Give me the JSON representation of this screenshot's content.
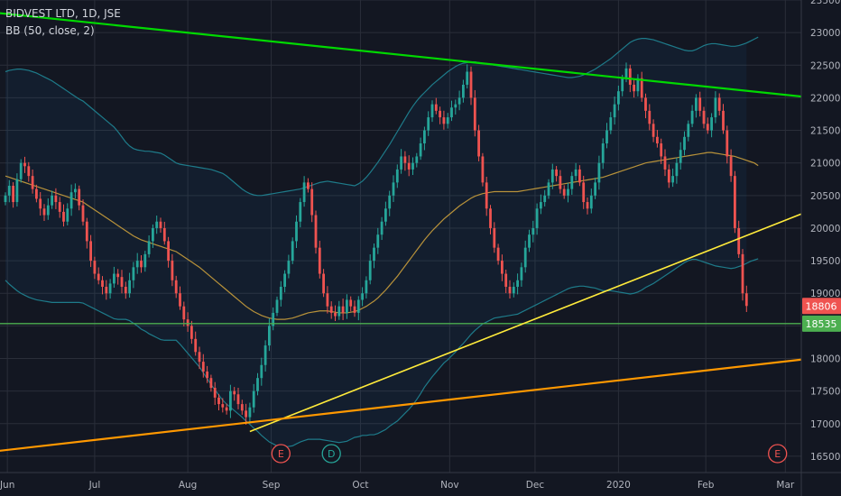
{
  "chart_data": {
    "type": "candlestick",
    "title": "BIDVEST LTD, 1D, JSE",
    "indicator": "BB (50, close, 2)",
    "ylim": [
      16250,
      23500
    ],
    "y_ticks": [
      16500,
      17000,
      17500,
      18000,
      18500,
      19000,
      19500,
      20000,
      20500,
      21000,
      21500,
      22000,
      22500,
      23000,
      23500
    ],
    "x_labels": [
      "Jun",
      "Jul",
      "Aug",
      "Sep",
      "Oct",
      "Nov",
      "Dec",
      "2020",
      "Feb",
      "Mar"
    ],
    "x_label_positions": [
      0.5,
      23,
      47,
      68.5,
      91.5,
      114.5,
      136.5,
      158,
      180.5,
      201
    ],
    "price_tags": [
      {
        "label": "18806",
        "value": 18806,
        "color": "#ef5350"
      },
      {
        "label": "18535",
        "value": 18535,
        "color": "#4caf50"
      }
    ],
    "horizontal_line": {
      "value": 18535,
      "color": "#4caf50"
    },
    "trendlines": [
      {
        "name": "green-resistance",
        "color": "#00d900",
        "points": [
          [
            -5,
            23320
          ],
          [
            218,
            21940
          ]
        ]
      },
      {
        "name": "yellow-support",
        "color": "#ffeb3b",
        "points": [
          [
            63,
            16880
          ],
          [
            218,
            20520
          ]
        ]
      },
      {
        "name": "orange-support",
        "color": "#ff9800",
        "points": [
          [
            -5,
            16560
          ],
          [
            218,
            18070
          ]
        ]
      }
    ],
    "events": [
      {
        "label": "E",
        "x": 71,
        "color": "#ef5350"
      },
      {
        "label": "D",
        "x": 84,
        "color": "#26a69a"
      },
      {
        "label": "E",
        "x": 199,
        "color": "#ef5350"
      }
    ],
    "close": [
      20500,
      20650,
      20400,
      20750,
      21000,
      20950,
      20800,
      20600,
      20450,
      20300,
      20200,
      20350,
      20500,
      20400,
      20250,
      20100,
      20300,
      20550,
      20600,
      20350,
      20100,
      19800,
      19500,
      19300,
      19200,
      19100,
      19000,
      19150,
      19300,
      19250,
      19100,
      19000,
      19200,
      19400,
      19500,
      19400,
      19600,
      19800,
      20000,
      20100,
      20000,
      19800,
      19500,
      19200,
      19000,
      18800,
      18600,
      18500,
      18300,
      18100,
      17950,
      17800,
      17700,
      17550,
      17400,
      17300,
      17250,
      17200,
      17500,
      17450,
      17300,
      17200,
      17100,
      17250,
      17500,
      17700,
      17900,
      18200,
      18500,
      18700,
      18900,
      19100,
      19300,
      19500,
      19800,
      20100,
      20400,
      20700,
      20600,
      20200,
      19700,
      19300,
      19000,
      18800,
      18700,
      18650,
      18800,
      18700,
      18900,
      18800,
      18700,
      18900,
      19000,
      19200,
      19500,
      19700,
      19900,
      20100,
      20300,
      20500,
      20700,
      20900,
      21100,
      21000,
      20900,
      21000,
      21100,
      21300,
      21500,
      21700,
      21900,
      21800,
      21700,
      21600,
      21700,
      21850,
      21900,
      22000,
      22200,
      22400,
      22000,
      21500,
      21100,
      20700,
      20300,
      20000,
      19700,
      19500,
      19300,
      19100,
      19000,
      19100,
      19200,
      19400,
      19700,
      19900,
      20000,
      20300,
      20400,
      20500,
      20700,
      20900,
      20800,
      20600,
      20500,
      20600,
      20800,
      20900,
      20700,
      20400,
      20300,
      20500,
      20700,
      21000,
      21300,
      21500,
      21700,
      21900,
      22100,
      22300,
      22450,
      22200,
      22100,
      22300,
      22000,
      21800,
      21600,
      21400,
      21300,
      21100,
      20900,
      20700,
      20800,
      21000,
      21200,
      21400,
      21600,
      21800,
      22000,
      21800,
      21600,
      21500,
      21700,
      22000,
      21800,
      21500,
      21100,
      20800,
      20000,
      19600,
      19000,
      18806
    ],
    "bb_mid": [
      20800,
      20780,
      20760,
      20740,
      20720,
      20700,
      20680,
      20660,
      20640,
      20620,
      20600,
      20580,
      20560,
      20540,
      20520,
      20500,
      20480,
      20460,
      20440,
      20420,
      20400,
      20360,
      20320,
      20280,
      20240,
      20200,
      20160,
      20120,
      20080,
      20040,
      20000,
      19960,
      19920,
      19880,
      19850,
      19820,
      19800,
      19780,
      19760,
      19740,
      19720,
      19700,
      19680,
      19660,
      19640,
      19600,
      19560,
      19520,
      19480,
      19440,
      19400,
      19350,
      19300,
      19250,
      19200,
      19150,
      19100,
      19050,
      19000,
      18950,
      18900,
      18850,
      18800,
      18760,
      18720,
      18690,
      18660,
      18640,
      18620,
      18610,
      18600,
      18600,
      18600,
      18610,
      18620,
      18640,
      18660,
      18680,
      18700,
      18710,
      18720,
      18730,
      18730,
      18730,
      18720,
      18710,
      18700,
      18700,
      18700,
      18710,
      18720,
      18740,
      18770,
      18800,
      18840,
      18880,
      18930,
      18990,
      19050,
      19120,
      19190,
      19260,
      19340,
      19420,
      19500,
      19580,
      19660,
      19740,
      19820,
      19890,
      19960,
      20020,
      20080,
      20140,
      20190,
      20240,
      20290,
      20340,
      20380,
      20420,
      20460,
      20490,
      20510,
      20530,
      20540,
      20550,
      20560,
      20560,
      20560,
      20560,
      20560,
      20560,
      20560,
      20570,
      20580,
      20590,
      20600,
      20610,
      20620,
      20630,
      20640,
      20650,
      20660,
      20670,
      20680,
      20690,
      20700,
      20710,
      20720,
      20730,
      20740,
      20750,
      20760,
      20770,
      20780,
      20800,
      20820,
      20840,
      20860,
      20880,
      20900,
      20920,
      20940,
      20960,
      20980,
      21000,
      21010,
      21020,
      21030,
      21040,
      21050,
      21060,
      21070,
      21080,
      21090,
      21100,
      21110,
      21120,
      21130,
      21140,
      21150,
      21160,
      21160,
      21150,
      21140,
      21130,
      21120,
      21110,
      21100,
      21080,
      21060,
      21040,
      21020,
      21000,
      20960
    ],
    "bb_upper": [
      22400,
      22420,
      22430,
      22440,
      22440,
      22430,
      22420,
      22400,
      22380,
      22350,
      22320,
      22290,
      22260,
      22220,
      22180,
      22140,
      22100,
      22060,
      22020,
      21980,
      21950,
      21900,
      21850,
      21800,
      21750,
      21700,
      21650,
      21600,
      21550,
      21480,
      21400,
      21320,
      21260,
      21220,
      21200,
      21190,
      21180,
      21180,
      21170,
      21160,
      21150,
      21120,
      21080,
      21040,
      21000,
      20980,
      20970,
      20960,
      20950,
      20940,
      20930,
      20920,
      20910,
      20900,
      20880,
      20860,
      20840,
      20800,
      20750,
      20700,
      20650,
      20600,
      20560,
      20530,
      20510,
      20500,
      20500,
      20510,
      20520,
      20530,
      20540,
      20550,
      20560,
      20570,
      20580,
      20590,
      20600,
      20620,
      20640,
      20660,
      20680,
      20700,
      20710,
      20720,
      20710,
      20700,
      20690,
      20680,
      20670,
      20660,
      20650,
      20680,
      20720,
      20780,
      20850,
      20930,
      21010,
      21100,
      21190,
      21280,
      21380,
      21480,
      21580,
      21680,
      21780,
      21870,
      21950,
      22020,
      22080,
      22140,
      22200,
      22250,
      22300,
      22350,
      22400,
      22440,
      22480,
      22510,
      22530,
      22540,
      22550,
      22550,
      22540,
      22530,
      22520,
      22510,
      22500,
      22490,
      22480,
      22470,
      22460,
      22450,
      22440,
      22430,
      22420,
      22410,
      22400,
      22390,
      22380,
      22370,
      22360,
      22350,
      22340,
      22330,
      22320,
      22310,
      22310,
      22320,
      22330,
      22350,
      22380,
      22410,
      22440,
      22480,
      22520,
      22560,
      22600,
      22650,
      22700,
      22750,
      22800,
      22850,
      22880,
      22900,
      22910,
      22910,
      22900,
      22890,
      22870,
      22850,
      22830,
      22810,
      22790,
      22770,
      22750,
      22730,
      22720,
      22720,
      22740,
      22770,
      22800,
      22820,
      22830,
      22830,
      22820,
      22810,
      22800,
      22790,
      22790,
      22800,
      22820,
      22840,
      22870,
      22900,
      22930
    ],
    "bb_lower": [
      19200,
      19140,
      19090,
      19040,
      19000,
      18970,
      18940,
      18920,
      18900,
      18890,
      18880,
      18870,
      18860,
      18860,
      18860,
      18860,
      18860,
      18860,
      18860,
      18860,
      18850,
      18820,
      18790,
      18760,
      18730,
      18700,
      18670,
      18640,
      18610,
      18600,
      18600,
      18600,
      18580,
      18540,
      18500,
      18450,
      18420,
      18380,
      18350,
      18320,
      18290,
      18280,
      18280,
      18280,
      18280,
      18220,
      18150,
      18080,
      18010,
      17940,
      17870,
      17780,
      17690,
      17600,
      17520,
      17440,
      17360,
      17300,
      17250,
      17200,
      17150,
      17100,
      17040,
      16990,
      16930,
      16880,
      16820,
      16770,
      16720,
      16690,
      16660,
      16650,
      16640,
      16650,
      16660,
      16690,
      16720,
      16740,
      16760,
      16760,
      16760,
      16760,
      16750,
      16740,
      16730,
      16720,
      16710,
      16720,
      16730,
      16760,
      16790,
      16800,
      16820,
      16820,
      16830,
      16830,
      16850,
      16880,
      16910,
      16960,
      17000,
      17040,
      17100,
      17160,
      17220,
      17290,
      17370,
      17460,
      17560,
      17640,
      17720,
      17790,
      17860,
      17930,
      17980,
      18040,
      18100,
      18170,
      18230,
      18300,
      18370,
      18430,
      18480,
      18530,
      18560,
      18590,
      18620,
      18630,
      18640,
      18650,
      18660,
      18670,
      18680,
      18710,
      18740,
      18770,
      18800,
      18830,
      18860,
      18890,
      18920,
      18950,
      18980,
      19010,
      19040,
      19070,
      19090,
      19100,
      19110,
      19110,
      19100,
      19090,
      19080,
      19060,
      19040,
      19040,
      19040,
      19030,
      19020,
      19010,
      19000,
      18990,
      19000,
      19020,
      19050,
      19090,
      19120,
      19150,
      19190,
      19230,
      19270,
      19310,
      19350,
      19390,
      19430,
      19470,
      19500,
      19520,
      19520,
      19500,
      19480,
      19460,
      19440,
      19420,
      19410,
      19400,
      19390,
      19380,
      19390,
      19410,
      19430,
      19460,
      19490,
      19510,
      19530
    ]
  }
}
